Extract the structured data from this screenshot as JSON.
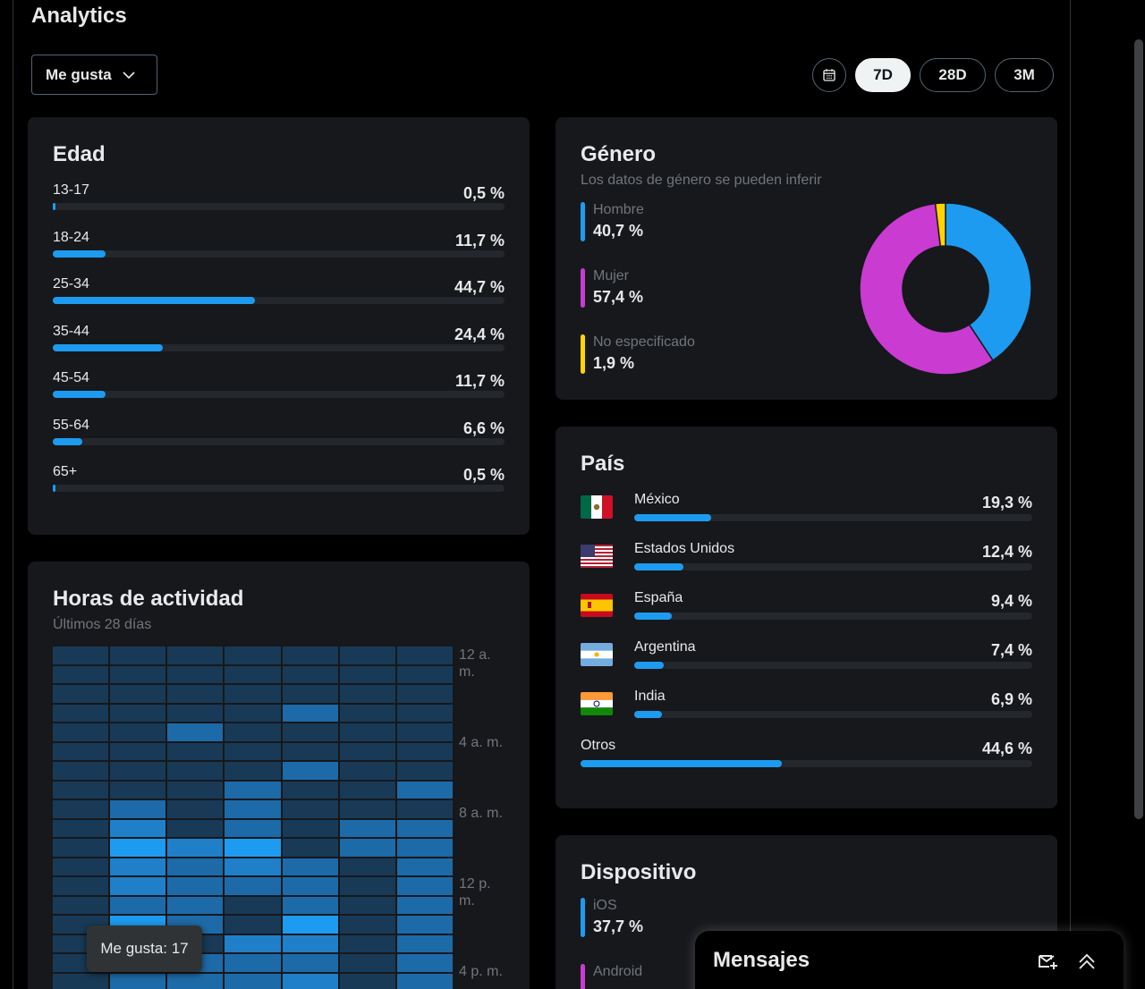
{
  "page": {
    "title": "Analytics"
  },
  "metric_select": {
    "label": "Me gusta",
    "icon": "chevron-down-icon"
  },
  "date_ranges": [
    {
      "label": "7D",
      "selected": true
    },
    {
      "label": "28D",
      "selected": false
    },
    {
      "label": "3M",
      "selected": false
    }
  ],
  "colors": {
    "accent": "#1d9bf0",
    "female": "#c93bd1",
    "unspecified": "#ffd400",
    "card": "#16181c"
  },
  "age": {
    "title": "Edad",
    "rows": [
      {
        "label": "13-17",
        "pct": "0,5 %",
        "value": 0.5
      },
      {
        "label": "18-24",
        "pct": "11,7 %",
        "value": 11.7
      },
      {
        "label": "25-34",
        "pct": "44,7 %",
        "value": 44.7
      },
      {
        "label": "35-44",
        "pct": "24,4 %",
        "value": 24.4
      },
      {
        "label": "45-54",
        "pct": "11,7 %",
        "value": 11.7
      },
      {
        "label": "55-64",
        "pct": "6,6 %",
        "value": 6.6
      },
      {
        "label": "65+",
        "pct": "0,5 %",
        "value": 0.5
      }
    ]
  },
  "gender": {
    "title": "Género",
    "subtitle": "Los datos de género se pueden inferir",
    "items": [
      {
        "label": "Hombre",
        "pct": "40,7 %",
        "value": 40.7,
        "color": "#1d9bf0"
      },
      {
        "label": "Mujer",
        "pct": "57,4 %",
        "value": 57.4,
        "color": "#c93bd1"
      },
      {
        "label": "No especificado",
        "pct": "1,9 %",
        "value": 1.9,
        "color": "#ffd400"
      }
    ]
  },
  "country": {
    "title": "País",
    "rows": [
      {
        "name": "México",
        "pct": "19,3 %",
        "value": 19.3,
        "flag": "mexico-flag-icon"
      },
      {
        "name": "Estados Unidos",
        "pct": "12,4 %",
        "value": 12.4,
        "flag": "usa-flag-icon"
      },
      {
        "name": "España",
        "pct": "9,4 %",
        "value": 9.4,
        "flag": "spain-flag-icon"
      },
      {
        "name": "Argentina",
        "pct": "7,4 %",
        "value": 7.4,
        "flag": "argentina-flag-icon"
      },
      {
        "name": "India",
        "pct": "6,9 %",
        "value": 6.9,
        "flag": "india-flag-icon"
      }
    ],
    "other": {
      "name": "Otros",
      "pct": "44,6 %",
      "value": 44.6
    }
  },
  "hours": {
    "title": "Horas de actividad",
    "subtitle": "Últimos 28 días",
    "axis_labels": [
      "12 a. m.",
      "4 a. m.",
      "8 a. m.",
      "12 p. m.",
      "4 p. m."
    ],
    "tooltip": "Me gusta: 17",
    "grid": [
      [
        1,
        1,
        1,
        1,
        1,
        1,
        1
      ],
      [
        1,
        1,
        1,
        1,
        1,
        1,
        1
      ],
      [
        1,
        1,
        1,
        1,
        1,
        1,
        1
      ],
      [
        1,
        1,
        1,
        1,
        2,
        1,
        1
      ],
      [
        1,
        1,
        2,
        1,
        1,
        1,
        1
      ],
      [
        1,
        1,
        1,
        1,
        1,
        1,
        1
      ],
      [
        1,
        1,
        1,
        1,
        2,
        1,
        1
      ],
      [
        1,
        1,
        1,
        2,
        1,
        1,
        2
      ],
      [
        1,
        2,
        1,
        2,
        1,
        1,
        1
      ],
      [
        1,
        3,
        1,
        2,
        1,
        2,
        2
      ],
      [
        1,
        4,
        3,
        4,
        1,
        2,
        2
      ],
      [
        1,
        3,
        2,
        3,
        2,
        1,
        2
      ],
      [
        1,
        3,
        2,
        2,
        2,
        1,
        2
      ],
      [
        1,
        2,
        2,
        1,
        2,
        1,
        2
      ],
      [
        1,
        4,
        2,
        1,
        4,
        1,
        2
      ],
      [
        1,
        2,
        1,
        3,
        3,
        1,
        2
      ],
      [
        1,
        2,
        2,
        2,
        2,
        1,
        2
      ],
      [
        1,
        2,
        2,
        2,
        3,
        1,
        2
      ]
    ]
  },
  "device": {
    "title": "Dispositivo",
    "items": [
      {
        "label": "iOS",
        "pct": "37,7 %",
        "color": "#1d9bf0"
      },
      {
        "label": "Android",
        "pct": "",
        "color": "#c93bd1"
      }
    ]
  },
  "messages": {
    "title": "Mensajes",
    "new_icon": "new-message-icon",
    "expand_icon": "expand-up-icon"
  }
}
